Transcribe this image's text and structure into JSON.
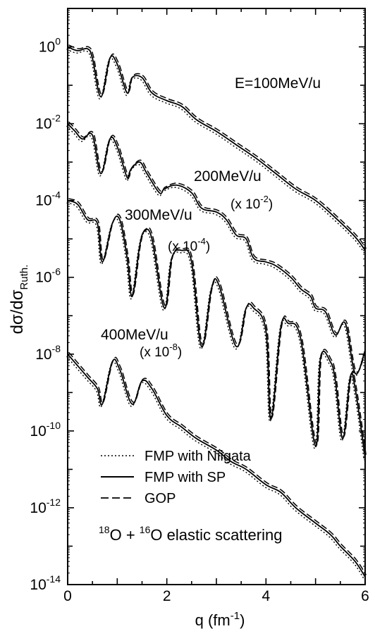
{
  "chart_data": {
    "type": "line",
    "xlabel": "q (fm",
    "xlabel_sup": "-1",
    "xlabel_close": ")",
    "ylabel": "dσ/dσ",
    "ylabel_sub": "Ruth.",
    "xlim": [
      0,
      6
    ],
    "ylim_exp": [
      -14,
      1
    ],
    "y_scale": "log",
    "x_ticks": [
      0,
      2,
      4,
      6
    ],
    "y_tick_exps": [
      0,
      -2,
      -4,
      -6,
      -8,
      -10,
      -12,
      -14
    ],
    "y_tick_base": "10",
    "legend": [
      {
        "label": "FMP with Niigata",
        "style": "dotted"
      },
      {
        "label": "FMP with SP",
        "style": "solid"
      },
      {
        "label": "GOP",
        "style": "dashed"
      }
    ],
    "reaction_label": {
      "pre1": "18",
      "el1": "O",
      "plus": " + ",
      "pre2": "16",
      "el2": "O",
      "rest": " elastic scattering"
    },
    "annotations": {
      "e100": "E=100MeV/u",
      "e200": "200MeV/u",
      "e200_scale_pre": "(x 10",
      "e200_scale_exp": "-2",
      "e200_scale_post": ")",
      "e300": "300MeV/u",
      "e300_scale_pre": "(x 10",
      "e300_scale_exp": "-4",
      "e300_scale_post": ")",
      "e400": "400MeV/u",
      "e400_scale_pre": "(x 10",
      "e400_scale_exp": "-8",
      "e400_scale_post": ")"
    },
    "series": [
      {
        "name": "E=100MeV/u",
        "x": [
          0.0,
          0.2,
          0.4,
          0.5,
          0.67,
          0.85,
          1.0,
          1.2,
          1.3,
          1.5,
          1.7,
          2.0,
          2.3,
          2.6,
          3.0,
          3.4,
          3.8,
          4.2,
          4.6,
          5.0,
          5.4,
          5.8,
          6.0
        ],
        "logy": [
          0.0,
          -0.1,
          -0.05,
          -0.3,
          -1.3,
          -0.3,
          -0.45,
          -1.2,
          -0.8,
          -0.8,
          -1.2,
          -1.4,
          -1.55,
          -1.9,
          -2.2,
          -2.55,
          -2.9,
          -3.3,
          -3.7,
          -4.0,
          -4.45,
          -4.95,
          -5.3
        ]
      },
      {
        "name": "200MeV/u",
        "x": [
          0.0,
          0.15,
          0.3,
          0.5,
          0.67,
          0.85,
          1.0,
          1.2,
          1.27,
          1.45,
          1.6,
          1.85,
          1.95,
          2.2,
          2.5,
          2.7,
          3.0,
          3.2,
          3.4,
          3.6,
          3.75,
          4.0,
          4.2,
          4.5,
          4.7,
          4.9,
          5.0,
          5.2,
          5.4,
          5.6,
          5.8,
          6.0
        ],
        "logy": [
          -2.0,
          -2.2,
          -2.4,
          -2.3,
          -3.3,
          -2.4,
          -2.6,
          -3.4,
          -3.2,
          -3.0,
          -3.3,
          -3.8,
          -3.7,
          -3.6,
          -3.8,
          -4.2,
          -4.3,
          -4.5,
          -4.9,
          -5.0,
          -5.5,
          -5.6,
          -5.7,
          -6.0,
          -6.3,
          -6.5,
          -6.8,
          -6.9,
          -7.5,
          -7.2,
          -8.5,
          -7.9
        ]
      },
      {
        "name": "300MeV/u",
        "x": [
          0.0,
          0.2,
          0.4,
          0.6,
          0.7,
          0.9,
          1.05,
          1.2,
          1.3,
          1.45,
          1.55,
          1.7,
          1.95,
          2.1,
          2.3,
          2.5,
          2.7,
          2.9,
          3.05,
          3.4,
          3.6,
          3.75,
          4.0,
          4.1,
          4.3,
          4.45,
          4.7,
          5.0,
          5.1,
          5.3,
          5.4,
          5.55,
          5.7,
          5.8,
          6.0
        ],
        "logy": [
          -4.0,
          -4.1,
          -4.5,
          -4.6,
          -5.6,
          -4.6,
          -4.5,
          -5.5,
          -6.5,
          -5.2,
          -4.8,
          -5.0,
          -6.8,
          -5.5,
          -5.3,
          -5.6,
          -7.8,
          -6.3,
          -6.2,
          -7.8,
          -6.8,
          -6.8,
          -7.4,
          -9.7,
          -7.3,
          -7.2,
          -7.6,
          -10.4,
          -8.1,
          -8.2,
          -8.7,
          -10.2,
          -8.6,
          -8.9,
          -10.7
        ]
      },
      {
        "name": "400MeV/u",
        "x": [
          0.0,
          0.2,
          0.4,
          0.6,
          0.7,
          0.9,
          1.05,
          1.3,
          1.5,
          1.7,
          2.0,
          2.3,
          2.6,
          3.0,
          3.3,
          3.6,
          4.0,
          4.3,
          4.6,
          5.0,
          5.3,
          5.5,
          5.8,
          6.0
        ],
        "logy": [
          -8.0,
          -8.3,
          -8.6,
          -8.9,
          -9.3,
          -8.2,
          -8.4,
          -9.3,
          -8.7,
          -8.9,
          -9.6,
          -9.9,
          -10.2,
          -10.5,
          -10.8,
          -11.0,
          -11.4,
          -11.6,
          -12.0,
          -12.4,
          -12.7,
          -13.0,
          -13.4,
          -13.8
        ]
      }
    ]
  }
}
